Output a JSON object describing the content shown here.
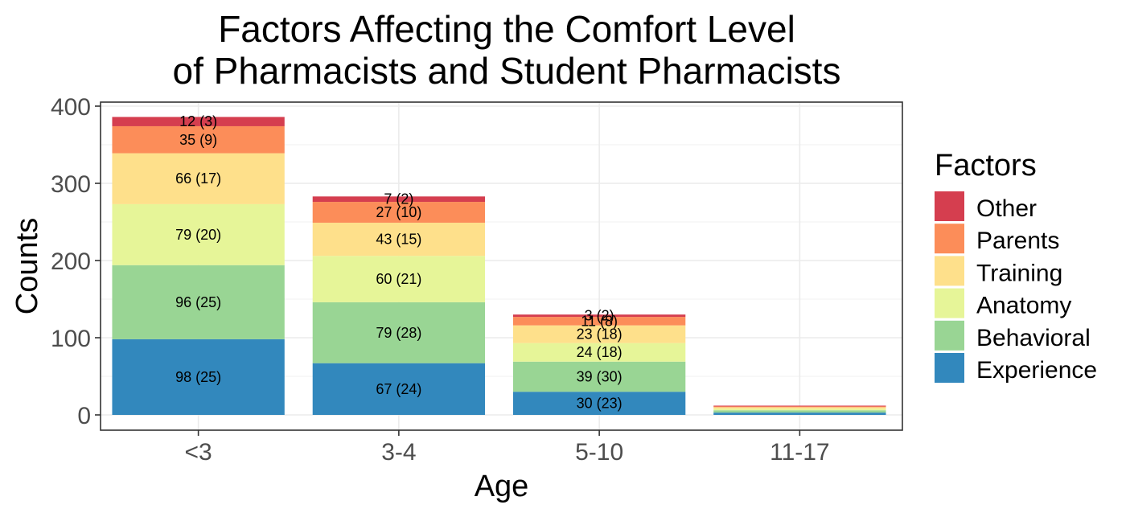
{
  "chart_data": {
    "type": "bar",
    "stacked": true,
    "title_lines": [
      "Factors Affecting the Comfort Level",
      "of Pharmacists and Student Pharmacists"
    ],
    "xlabel": "Age",
    "ylabel": "Counts",
    "ylim": [
      0,
      400
    ],
    "yticks": [
      0,
      100,
      200,
      300,
      400
    ],
    "grid": true,
    "legend_title": "Factors",
    "legend_position": "right",
    "categories": [
      "<3",
      "3-4",
      "5-10",
      "11-17"
    ],
    "series": [
      {
        "name": "Experience",
        "color": "#3288bd",
        "values": [
          98,
          67,
          30,
          3
        ],
        "labels": [
          "98 (25)",
          "67 (24)",
          "30 (23)",
          ""
        ]
      },
      {
        "name": "Behavioral",
        "color": "#99d594",
        "values": [
          96,
          79,
          39,
          3
        ],
        "labels": [
          "96 (25)",
          "79 (28)",
          "39 (30)",
          ""
        ]
      },
      {
        "name": "Anatomy",
        "color": "#e6f598",
        "values": [
          79,
          60,
          24,
          2
        ],
        "labels": [
          "79 (20)",
          "60 (21)",
          "24 (18)",
          ""
        ]
      },
      {
        "name": "Training",
        "color": "#fee08b",
        "values": [
          66,
          43,
          23,
          2
        ],
        "labels": [
          "66 (17)",
          "43 (15)",
          "23 (18)",
          ""
        ]
      },
      {
        "name": "Parents",
        "color": "#fc8d59",
        "values": [
          35,
          27,
          11,
          1
        ],
        "labels": [
          "35 (9)",
          "27 (10)",
          "11 (8)",
          ""
        ]
      },
      {
        "name": "Other",
        "color": "#d53e4f",
        "values": [
          12,
          7,
          3,
          1
        ],
        "labels": [
          "12 (3)",
          "7 (2)",
          "3 (2)",
          ""
        ]
      }
    ],
    "legend_order": [
      "Other",
      "Parents",
      "Training",
      "Anatomy",
      "Behavioral",
      "Experience"
    ]
  }
}
